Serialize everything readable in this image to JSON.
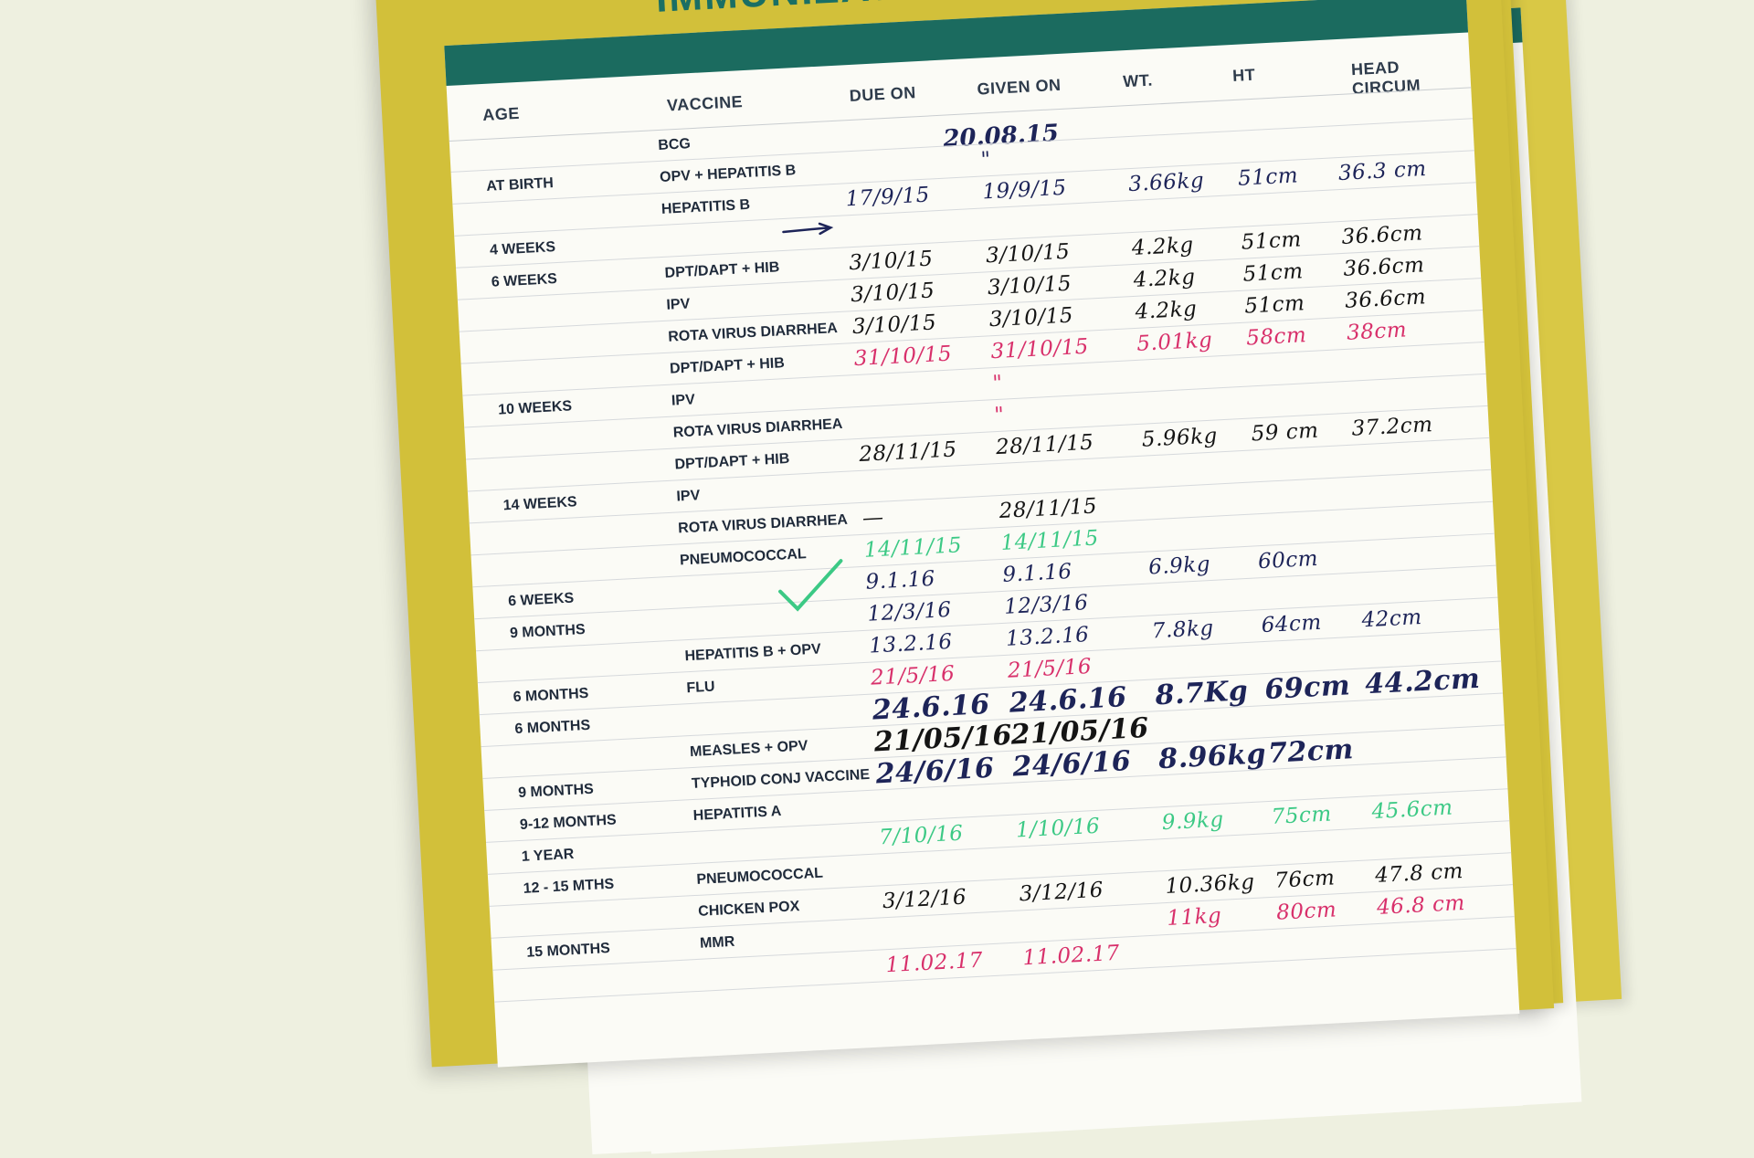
{
  "title": "IMMUNIZATION SCHEDULE",
  "headers": {
    "age": "AGE",
    "vaccine": "VACCINE",
    "due_on": "DUE ON",
    "given_on": "GIVEN ON",
    "wt": "WT.",
    "ht": "HT",
    "head_circum": "HEAD CIRCUM"
  },
  "top_note": "20.08.15",
  "rows": [
    {
      "age": "",
      "vaccine": "BCG",
      "due": "",
      "given": "",
      "wt": "",
      "ht": "",
      "hc": "",
      "ink": "blue"
    },
    {
      "age": "AT BIRTH",
      "vaccine": "OPV + HEPATITIS B",
      "due": "",
      "given": "\"",
      "wt": "",
      "ht": "",
      "hc": "",
      "ink": "blue"
    },
    {
      "age": "",
      "vaccine": "HEPATITIS B",
      "due": "17/9/15",
      "given": "19/9/15",
      "wt": "3.66kg",
      "ht": "51cm",
      "hc": "36.3 cm",
      "ink": "blue"
    },
    {
      "age": "4 WEEKS",
      "vaccine": "",
      "due": "",
      "given": "",
      "wt": "",
      "ht": "",
      "hc": "",
      "ink": "blue"
    },
    {
      "age": "6 WEEKS",
      "vaccine": "DPT/DAPT + HIB",
      "due": "3/10/15",
      "given": "3/10/15",
      "wt": "4.2kg",
      "ht": "51cm",
      "hc": "36.6cm",
      "ink": "black"
    },
    {
      "age": "",
      "vaccine": "IPV",
      "due": "3/10/15",
      "given": "3/10/15",
      "wt": "4.2kg",
      "ht": "51cm",
      "hc": "36.6cm",
      "ink": "black"
    },
    {
      "age": "",
      "vaccine": "ROTA VIRUS DIARRHEA",
      "due": "3/10/15",
      "given": "3/10/15",
      "wt": "4.2kg",
      "ht": "51cm",
      "hc": "36.6cm",
      "ink": "black"
    },
    {
      "age": "",
      "vaccine": "DPT/DAPT + HIB",
      "due": "31/10/15",
      "given": "31/10/15",
      "wt": "5.01kg",
      "ht": "58cm",
      "hc": "38cm",
      "ink": "red"
    },
    {
      "age": "10 WEEKS",
      "vaccine": "IPV",
      "due": "",
      "given": "\"",
      "wt": "",
      "ht": "",
      "hc": "",
      "ink": "red"
    },
    {
      "age": "",
      "vaccine": "ROTA VIRUS DIARRHEA",
      "due": "",
      "given": "\"",
      "wt": "",
      "ht": "",
      "hc": "",
      "ink": "red"
    },
    {
      "age": "",
      "vaccine": "DPT/DAPT + HIB",
      "due": "28/11/15",
      "given": "28/11/15",
      "wt": "5.96kg",
      "ht": "59 cm",
      "hc": "37.2cm",
      "ink": "black"
    },
    {
      "age": "14 WEEKS",
      "vaccine": "IPV",
      "due": "",
      "given": "",
      "wt": "",
      "ht": "",
      "hc": "",
      "ink": "black"
    },
    {
      "age": "",
      "vaccine": "ROTA VIRUS DIARRHEA",
      "due": "—",
      "given": "28/11/15",
      "wt": "",
      "ht": "",
      "hc": "",
      "ink": "black"
    },
    {
      "age": "",
      "vaccine": "PNEUMOCOCCAL",
      "due": "14/11/15",
      "given": "14/11/15",
      "wt": "",
      "ht": "",
      "hc": "",
      "ink": "green"
    },
    {
      "age": "6 WEEKS",
      "vaccine": "",
      "due": "9.1.16",
      "given": "9.1.16",
      "wt": "6.9kg",
      "ht": "60cm",
      "hc": "",
      "ink": "blue"
    },
    {
      "age": "9 MONTHS",
      "vaccine": "",
      "due": "12/3/16",
      "given": "12/3/16",
      "wt": "",
      "ht": "",
      "hc": "",
      "ink": "blue"
    },
    {
      "age": "",
      "vaccine": "HEPATITIS B + OPV",
      "due": "13.2.16",
      "given": "13.2.16",
      "wt": "7.8kg",
      "ht": "64cm",
      "hc": "42cm",
      "ink": "blue"
    },
    {
      "age": "6 MONTHS",
      "vaccine": "FLU",
      "due": "21/5/16",
      "given": "21/5/16",
      "wt": "",
      "ht": "",
      "hc": "",
      "ink": "red"
    },
    {
      "age": "6 MONTHS",
      "vaccine": "",
      "due": "24.6.16",
      "given": "24.6.16",
      "wt": "8.7Kg",
      "ht": "69cm",
      "hc": "44.2cm",
      "ink": "blue"
    },
    {
      "age": "",
      "vaccine": "MEASLES + OPV",
      "due": "21/05/16",
      "given": "21/05/16",
      "wt": "",
      "ht": "",
      "hc": "",
      "ink": "black"
    },
    {
      "age": "9 MONTHS",
      "vaccine": "TYPHOID CONJ VACCINE",
      "due": "24/6/16",
      "given": "24/6/16",
      "wt": "8.96kg",
      "ht": "72cm",
      "hc": "",
      "ink": "blue"
    },
    {
      "age": "9-12 MONTHS",
      "vaccine": "HEPATITIS A",
      "due": "",
      "given": "",
      "wt": "",
      "ht": "",
      "hc": "",
      "ink": "green"
    },
    {
      "age": "1 YEAR",
      "vaccine": "",
      "due": "7/10/16",
      "given": "1/10/16",
      "wt": "9.9kg",
      "ht": "75cm",
      "hc": "45.6cm",
      "ink": "green"
    },
    {
      "age": "12 - 15 MTHS",
      "vaccine": "PNEUMOCOCCAL",
      "due": "",
      "given": "",
      "wt": "",
      "ht": "",
      "hc": "",
      "ink": "black"
    },
    {
      "age": "",
      "vaccine": "CHICKEN POX",
      "due": "3/12/16",
      "given": "3/12/16",
      "wt": "10.36kg",
      "ht": "76cm",
      "hc": "47.8 cm",
      "ink": "black"
    },
    {
      "age": "15 MONTHS",
      "vaccine": "MMR",
      "due": "",
      "given": "",
      "wt": "11kg",
      "ht": "80cm",
      "hc": "46.8 cm",
      "ink": "red"
    },
    {
      "age": "",
      "vaccine": "",
      "due": "11.02.17",
      "given": "11.02.17",
      "wt": "",
      "ht": "",
      "hc": "",
      "ink": "red"
    }
  ],
  "colors": {
    "sheet": "#d2c03a",
    "teal": "#1b6b5f",
    "ink_blue": "#1d2458",
    "ink_red": "#d8306b",
    "ink_green": "#3cc985"
  },
  "icons": [
    "checkmark-icon",
    "arrow-icon"
  ]
}
